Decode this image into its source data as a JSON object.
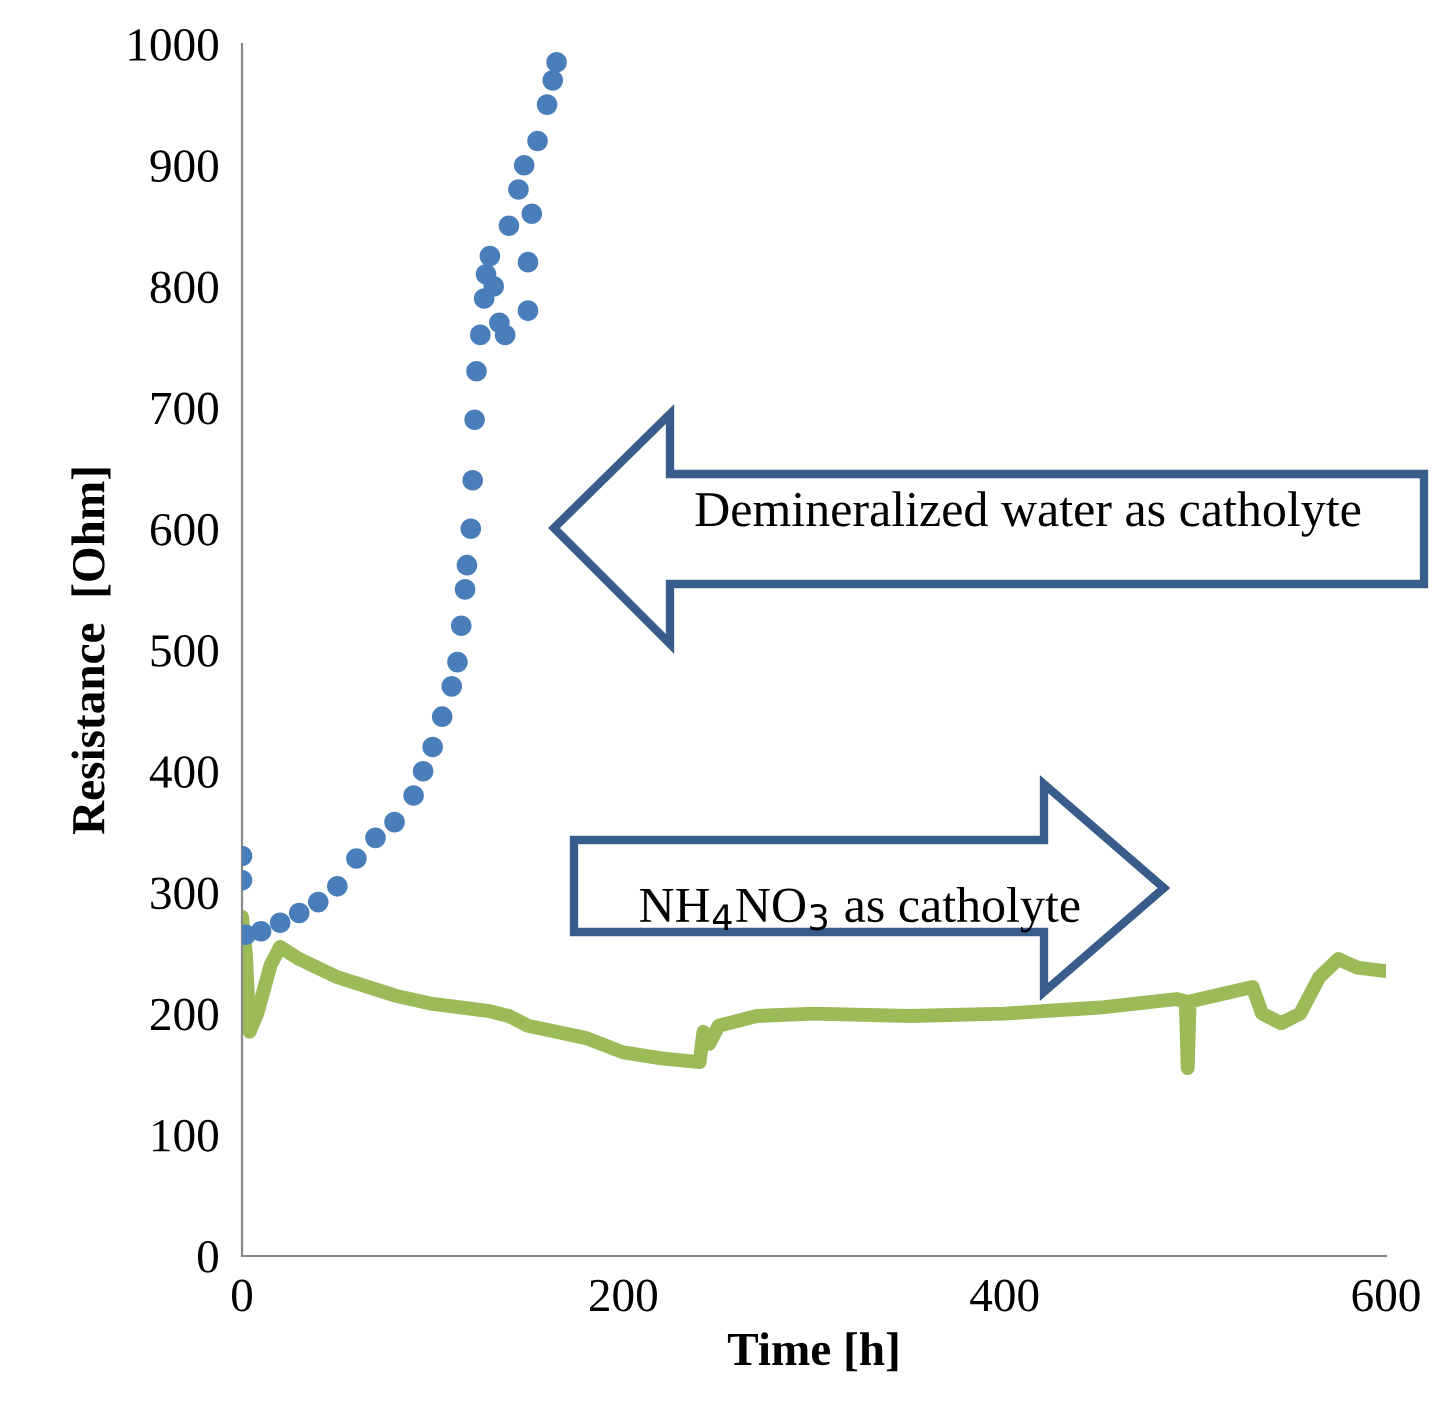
{
  "chart_data": {
    "type": "scatter",
    "xlabel": "Time [h]",
    "ylabel": "Resistance  [Ohm]",
    "xlim": [
      0,
      600
    ],
    "xticks": [
      0,
      200,
      400,
      600
    ],
    "ylim": [
      0,
      1000
    ],
    "yticks": [
      0,
      100,
      200,
      300,
      400,
      500,
      600,
      700,
      800,
      900,
      1000
    ],
    "grid": false,
    "legend": false,
    "annotations": [
      "Demineralized water as catholyte",
      "NH$_{4}$NO$_{3}$ as catholyte"
    ],
    "series": [
      {
        "color": "#4a7ebb",
        "marker": "circle",
        "x": [
          0,
          0,
          2,
          10,
          20,
          30,
          40,
          50,
          60,
          70,
          80,
          90,
          95,
          100,
          105,
          110,
          113,
          115,
          117,
          118,
          120,
          121,
          122,
          123,
          125,
          127,
          128,
          130,
          132,
          135,
          138,
          140,
          145,
          148,
          150,
          150,
          152,
          155,
          160,
          163,
          165
        ],
        "values": [
          330,
          310,
          265,
          268,
          275,
          283,
          292,
          305,
          328,
          345,
          358,
          380,
          400,
          420,
          445,
          470,
          490,
          520,
          550,
          570,
          600,
          640,
          690,
          730,
          760,
          790,
          810,
          825,
          800,
          770,
          760,
          850,
          880,
          900,
          780,
          820,
          860,
          920,
          950,
          970,
          985
        ]
      },
      {
        "type": "line",
        "color": "#9bbb59",
        "marker": "none",
        "line_style": "solid",
        "x": [
          0,
          2,
          4,
          8,
          15,
          20,
          30,
          50,
          80,
          100,
          130,
          140,
          150,
          180,
          200,
          220,
          240,
          242,
          245,
          250,
          270,
          300,
          350,
          400,
          450,
          490,
          495,
          496,
          497,
          530,
          535,
          545,
          555,
          565,
          575,
          585,
          600
        ],
        "values": [
          280,
          250,
          185,
          200,
          240,
          255,
          245,
          230,
          215,
          208,
          202,
          198,
          190,
          180,
          168,
          163,
          160,
          185,
          175,
          190,
          198,
          200,
          198,
          200,
          205,
          212,
          210,
          155,
          210,
          222,
          200,
          192,
          200,
          230,
          245,
          238,
          235
        ]
      }
    ]
  }
}
